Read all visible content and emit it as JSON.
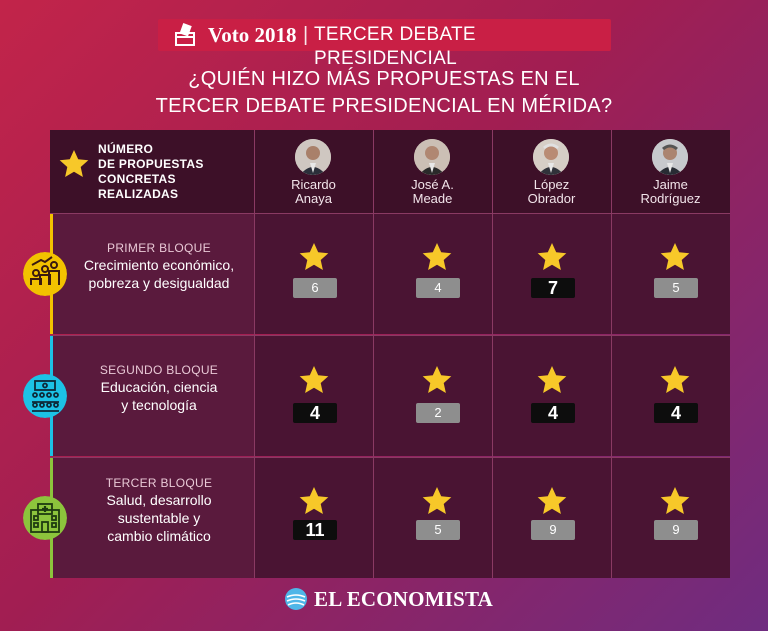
{
  "header": {
    "brand": "Voto 2018",
    "separator": "|",
    "subtitle": "TERCER DEBATE PRESIDENCIAL",
    "icon": "ballot-box-icon"
  },
  "question": {
    "line1": "¿QUIÉN HIZO MÁS PROPUESTAS EN EL",
    "line2": "TERCER DEBATE PRESIDENCIAL EN MÉRIDA?"
  },
  "legend": {
    "line1": "NÚMERO",
    "line2": "DE PROPUESTAS",
    "line3": "CONCRETAS",
    "line4": "REALIZADAS",
    "icon": "star-icon"
  },
  "candidates": [
    {
      "first": "Ricardo",
      "last": "Anaya"
    },
    {
      "first": "José A.",
      "last": "Meade"
    },
    {
      "first": "López",
      "last": "Obrador"
    },
    {
      "first": "Jaime",
      "last": "Rodríguez"
    }
  ],
  "blocks": [
    {
      "tag": "PRIMER BLOQUE",
      "topic1": "Crecimiento económico,",
      "topic2": "pobreza y desigualdad",
      "topic3": "",
      "icon": "growth-people-icon",
      "accent": "#f2c200",
      "values": [
        "6",
        "4",
        "7",
        "5"
      ],
      "winners": [
        false,
        false,
        true,
        false
      ]
    },
    {
      "tag": "SEGUNDO BLOQUE",
      "topic1": "Educación, ciencia",
      "topic2": "y tecnología",
      "topic3": "",
      "icon": "classroom-icon",
      "accent": "#1cc2e6",
      "values": [
        "4",
        "2",
        "4",
        "4"
      ],
      "winners": [
        true,
        false,
        true,
        true
      ]
    },
    {
      "tag": "TERCER BLOQUE",
      "topic1": "Salud, desarrollo",
      "topic2": "sustentable y",
      "topic3": "cambio climático",
      "icon": "hospital-icon",
      "accent": "#8cc43c",
      "values": [
        "11",
        "5",
        "9",
        "9"
      ],
      "winners": [
        true,
        false,
        false,
        false
      ]
    }
  ],
  "colors": {
    "star": "#f7c829",
    "badge": "#8e8e8e",
    "winner_badge": "#0d0d0d"
  },
  "footer": {
    "brand": "EL ECONOMISTA",
    "icon": "globe-logo-icon"
  }
}
